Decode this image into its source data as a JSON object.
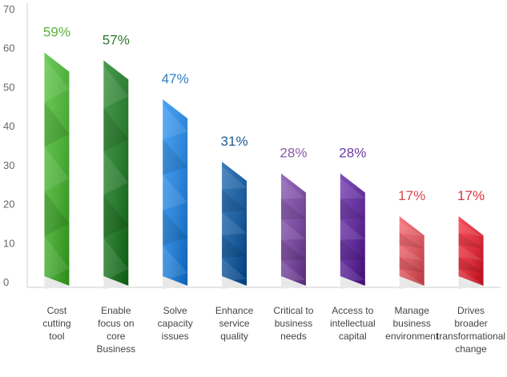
{
  "chart_data": {
    "type": "bar",
    "title": "",
    "xlabel": "",
    "ylabel": "",
    "ylim": [
      0,
      70
    ],
    "yticks": [
      0,
      10,
      20,
      30,
      40,
      50,
      60,
      70
    ],
    "grid": false,
    "categories": [
      [
        "Cost",
        "cutting",
        "tool"
      ],
      [
        "Enable",
        "focus on",
        "core",
        "Business"
      ],
      [
        "Solve",
        "capacity",
        "issues"
      ],
      [
        "Enhance",
        "service",
        "quality"
      ],
      [
        "Critical to",
        "business",
        "needs"
      ],
      [
        "Access to",
        "intellectual",
        "capital"
      ],
      [
        "Manage",
        "business",
        "environment"
      ],
      [
        "Drives",
        "broader",
        "transformational",
        "change"
      ]
    ],
    "values": [
      59,
      57,
      47,
      31,
      28,
      28,
      17,
      17
    ],
    "data_labels": [
      "59%",
      "57%",
      "47%",
      "31%",
      "28%",
      "28%",
      "17%",
      "17%"
    ],
    "colors": [
      "#4fae3c",
      "#2d7d32",
      "#2f86d8",
      "#1f5f9e",
      "#7a4d9e",
      "#63309a",
      "#d95b62",
      "#d9303c"
    ],
    "label_colors": [
      "#58b33a",
      "#2a7a2e",
      "#2f7fc8",
      "#1f5b8e",
      "#8a5aa8",
      "#6e3aa0",
      "#d9464c",
      "#d9303c"
    ],
    "axis_color": "#cccccc"
  }
}
